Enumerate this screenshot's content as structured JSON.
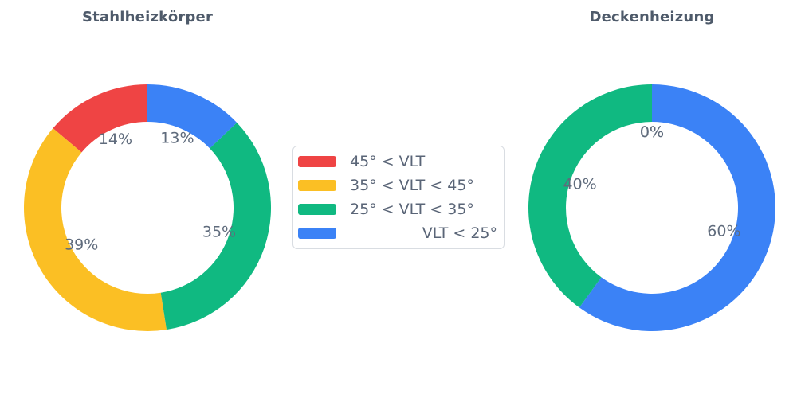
{
  "legend": {
    "items": [
      {
        "label": "45° < VLT",
        "color": "#EF4444"
      },
      {
        "label": "35° < VLT < 45°",
        "color": "#FBBF24"
      },
      {
        "label": "25° < VLT < 35°",
        "color": "#10B981"
      },
      {
        "label": "VLT < 25°",
        "color": "#3B82F6"
      }
    ]
  },
  "chart_data": [
    {
      "type": "pie",
      "title": "Stahlheizkörper",
      "hole": 0.7,
      "direction": "counterclockwise",
      "start_angle": "top",
      "categories": [
        "45° < VLT",
        "35° < VLT < 45°",
        "25° < VLT < 35°",
        "VLT < 25°"
      ],
      "values": [
        14,
        39,
        35,
        13
      ],
      "unit": "%",
      "slice_labels": [
        "14%",
        "39%",
        "35%",
        "13%"
      ],
      "colors": [
        "#EF4444",
        "#FBBF24",
        "#10B981",
        "#3B82F6"
      ],
      "label_color": "#5f6b7c",
      "legend_position": "center-between-charts"
    },
    {
      "type": "pie",
      "title": "Deckenheizung",
      "hole": 0.7,
      "direction": "counterclockwise",
      "start_angle": "top",
      "categories": [
        "45° < VLT",
        "35° < VLT < 45°",
        "25° < VLT < 35°",
        "VLT < 25°"
      ],
      "values": [
        0,
        0,
        40,
        60
      ],
      "unit": "%",
      "slice_labels": [
        "0%",
        "0%",
        "40%",
        "60%"
      ],
      "colors": [
        "#EF4444",
        "#FBBF24",
        "#10B981",
        "#3B82F6"
      ],
      "label_color": "#5f6b7c",
      "legend_position": "center-between-charts"
    }
  ]
}
